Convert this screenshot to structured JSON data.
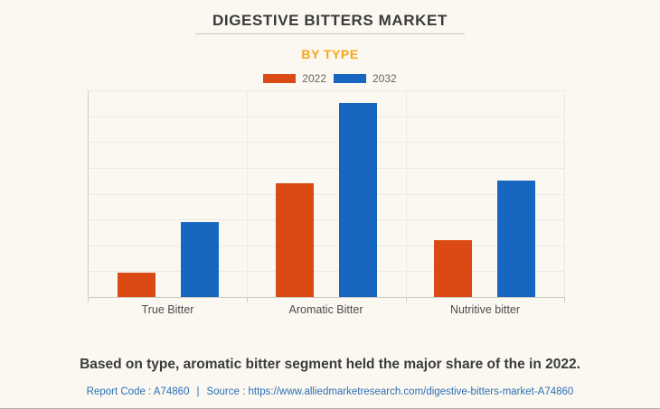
{
  "header": {
    "title": "DIGESTIVE BITTERS MARKET",
    "subtitle": "BY TYPE"
  },
  "legend": {
    "items": [
      {
        "label": "2022",
        "color": "#db4914"
      },
      {
        "label": "2032",
        "color": "#1767c1"
      }
    ]
  },
  "chart_data": {
    "type": "bar",
    "title": "DIGESTIVE BITTERS MARKET",
    "subtitle": "BY TYPE",
    "categories": [
      "True Bitter",
      "Aromatic Bitter",
      "Nutritive bitter"
    ],
    "series": [
      {
        "name": "2022",
        "color": "#db4914",
        "values": [
          0.95,
          4.4,
          2.2
        ]
      },
      {
        "name": "2032",
        "color": "#1767c1",
        "values": [
          2.9,
          7.5,
          4.5
        ]
      }
    ],
    "xlabel": "",
    "ylabel": "",
    "ylim": [
      0,
      8
    ],
    "gridline_step": 1,
    "grid": true,
    "value_axis_labels_visible": false,
    "legend_position": "top"
  },
  "footer": {
    "statement": "Based on type, aromatic bitter segment held the major share of the in 2022.",
    "report_code": "Report Code : A74860",
    "separator": "|",
    "source": "Source : https://www.alliedmarketresearch.com/digestive-bitters-market-A74860"
  },
  "colors": {
    "background": "#faf8f1",
    "subtitle_accent": "#f9a51a",
    "series_2022": "#db4914",
    "series_2032": "#1767c1",
    "gridline": "#eceae4",
    "axis": "#cfccc6",
    "title_text": "#3a3a3a",
    "category_text": "#4d4d4d",
    "link_text": "#2d6eb4"
  }
}
